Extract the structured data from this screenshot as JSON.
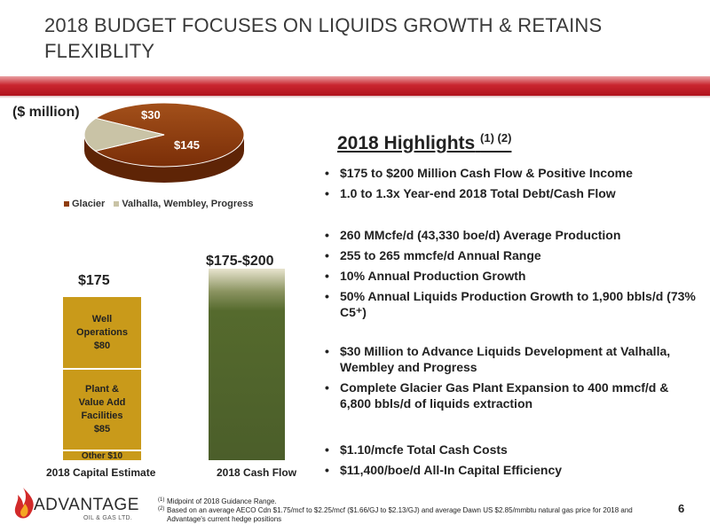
{
  "slide": {
    "title": "2018 BUDGET FOCUSES ON LIQUIDS GROWTH & RETAINS FLEXIBLITY",
    "units": "($ million)",
    "page_number": "6"
  },
  "colors": {
    "accent_red": "#c0202a",
    "glacier": "#8f3d0e",
    "valhalla": "#c9c3a6",
    "capital_bar": "#c99a1a",
    "cash_flow_bar": "#4b5e2a"
  },
  "chart_data": [
    {
      "type": "pie",
      "categories": [
        "Glacier",
        "Valhalla, Wembley, Progress"
      ],
      "values": [
        145,
        30
      ],
      "labels": [
        "$145",
        "$30"
      ],
      "legend": "bottom"
    },
    {
      "type": "bar",
      "categories": [
        "2018 Capital Estimate",
        "2018 Cash Flow"
      ],
      "top_labels": [
        "$175",
        "$175-$200"
      ],
      "capital_segments": [
        {
          "label": "Other $10",
          "value": 10
        },
        {
          "label_lines": [
            "Plant &",
            "Value Add",
            "Facilities",
            "$85"
          ],
          "value": 85
        },
        {
          "label_lines": [
            "Well",
            "Operations",
            "$80"
          ],
          "value": 80
        }
      ],
      "cash_flow_range": [
        175,
        200
      ]
    }
  ],
  "highlights": {
    "title": "2018 Highlights",
    "title_refs": "(1) (2)",
    "group1": [
      "$175 to $200 Million Cash Flow & Positive Income",
      "1.0 to 1.3x Year-end 2018 Total Debt/Cash Flow"
    ],
    "group2": [
      "260 MMcfe/d (43,330 boe/d) Average Production",
      "255 to 265 mmcfe/d Annual Range",
      "10% Annual Production Growth",
      "50% Annual Liquids Production Growth to 1,900 bbls/d (73% C5⁺)"
    ],
    "group3": [
      "$30 Million to Advance Liquids Development at Valhalla, Wembley and Progress",
      "Complete Glacier Gas Plant Expansion to 400 mmcf/d & 6,800 bbls/d of liquids extraction"
    ],
    "group4": [
      "$1.10/mcfe Total Cash Costs",
      "$11,400/boe/d All-In Capital Efficiency"
    ]
  },
  "logo": {
    "name": "ADVANTAGE",
    "sub": "OIL & GAS LTD."
  },
  "footnotes": [
    {
      "mark": "(1)",
      "text": "Midpoint of 2018 Guidance Range."
    },
    {
      "mark": "(2)",
      "text": "Based on an average AECO Cdn $1.75/mcf to $2.25/mcf ($1.66/GJ to $2.13/GJ) and average Dawn US $2.85/mmbtu natural gas price for 2018 and Advantage's current hedge positions"
    }
  ]
}
